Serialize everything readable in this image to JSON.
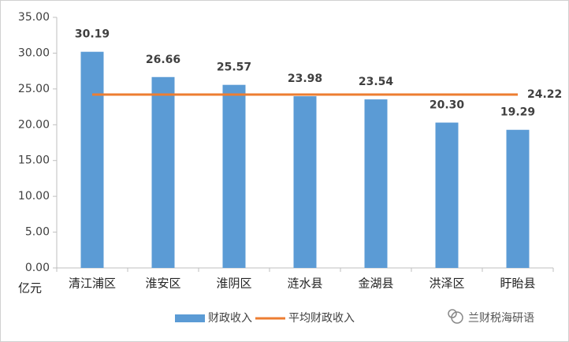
{
  "chart_data": {
    "type": "bar",
    "y_unit": "亿元",
    "categories": [
      "清江浦区",
      "淮安区",
      "淮阴区",
      "涟水县",
      "金湖县",
      "洪泽区",
      "盱眙县"
    ],
    "series": [
      {
        "name": "财政收入",
        "type": "bar",
        "color": "#5b9bd5",
        "values": [
          30.19,
          26.66,
          25.57,
          23.98,
          23.54,
          20.3,
          19.29
        ],
        "value_labels": [
          "30.19",
          "26.66",
          "25.57",
          "23.98",
          "23.54",
          "20.30",
          "19.29"
        ]
      },
      {
        "name": "平均财政收入",
        "type": "line",
        "color": "#ed7d31",
        "values": [
          24.22,
          24.22,
          24.22,
          24.22,
          24.22,
          24.22,
          24.22
        ]
      }
    ],
    "ylim": [
      0,
      35
    ],
    "yticks": [
      {
        "value": 0,
        "label": "0.00"
      },
      {
        "value": 5,
        "label": "5.00"
      },
      {
        "value": 10,
        "label": "10.00"
      },
      {
        "value": 15,
        "label": "15.00"
      },
      {
        "value": 20,
        "label": "20.00"
      },
      {
        "value": 25,
        "label": "25.00"
      },
      {
        "value": 30,
        "label": "30.00"
      },
      {
        "value": 35,
        "label": "35.00"
      }
    ],
    "grid": false,
    "legend": "bottom",
    "watermark": "兰财税海研语"
  }
}
